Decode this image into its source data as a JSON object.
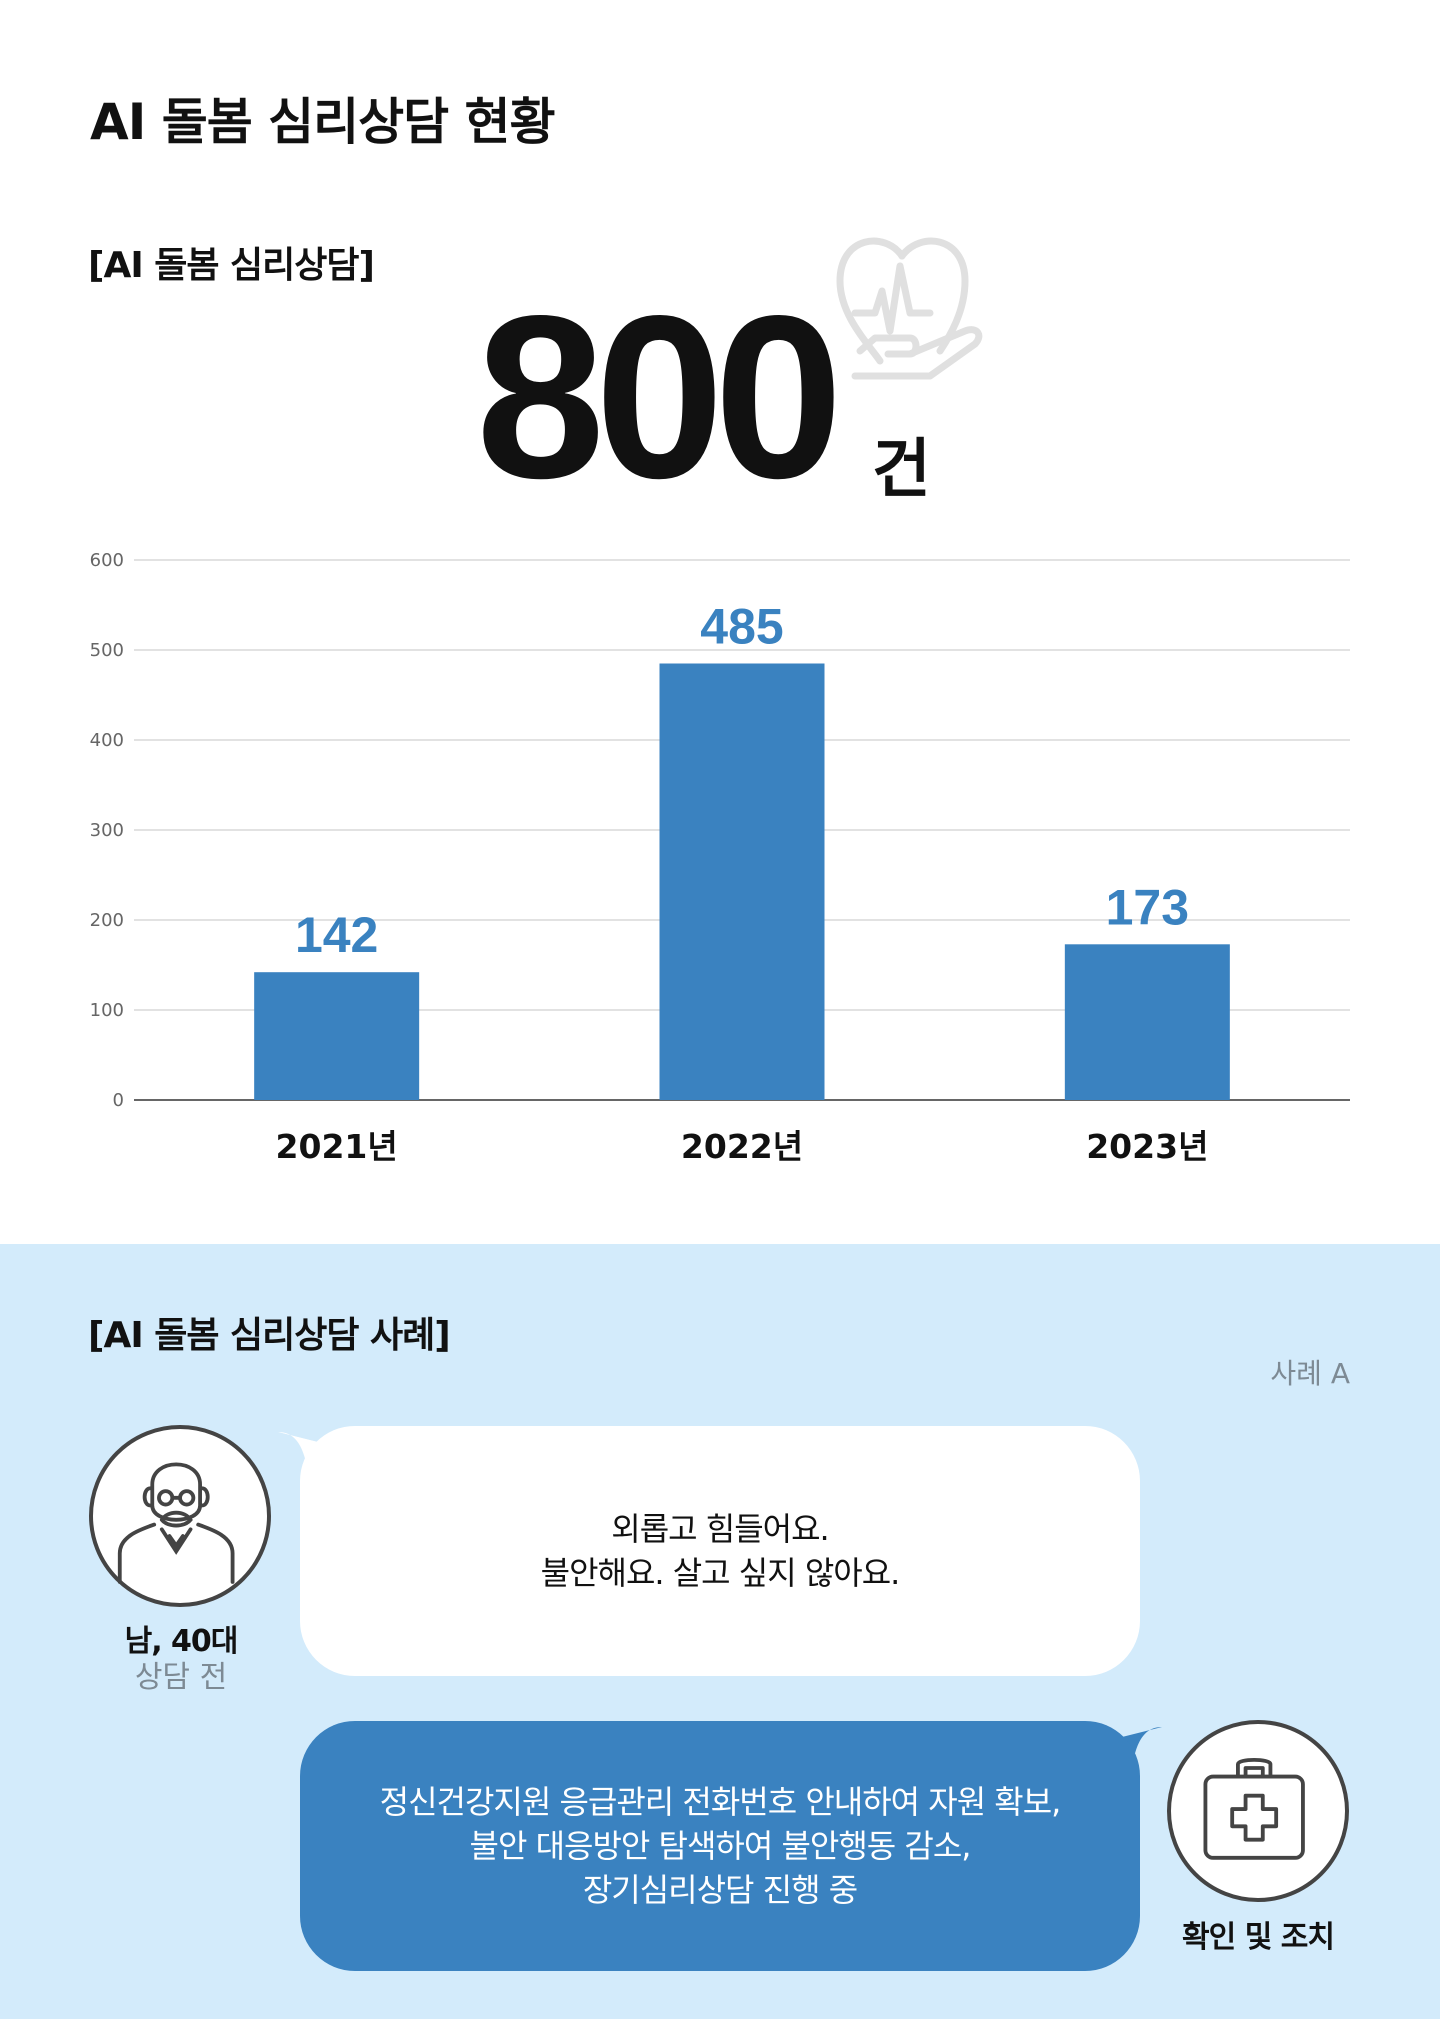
{
  "header": {
    "title": "AI 돌봄 심리상담 현황"
  },
  "summary": {
    "label": "[AI 돌봄 심리상담]",
    "total": "800",
    "unit": "건",
    "icon": "heart-hand-icon"
  },
  "chart_data": {
    "type": "bar",
    "categories": [
      "2021년",
      "2022년",
      "2023년"
    ],
    "values": [
      142,
      485,
      173
    ],
    "data_labels": [
      "142",
      "485",
      "173"
    ],
    "ylim": [
      0,
      600
    ],
    "yticks": [
      "0",
      "100",
      "200",
      "300",
      "400",
      "500",
      "600"
    ],
    "grid": true,
    "bar_color": "#3a82c0",
    "label_color": "#3a82c0"
  },
  "cases": {
    "title": "[AI 돌봄 심리상담 사례]",
    "case_label": "사례 A",
    "client": {
      "who": "남, 40대",
      "stage": "상담 전",
      "icon": "elderly-man-icon"
    },
    "before": {
      "lines": [
        "외롭고 힘들어요.",
        "불안해요. 살고 싶지 않아요."
      ]
    },
    "action": {
      "label": "확인 및 조치",
      "icon": "first-aid-kit-icon",
      "lines": [
        "정신건강지원 응급관리 전화번호 안내하여 자원 확보,",
        "불안  대응방안 탐색하여 불안행동 감소,",
        "장기심리상담 진행 중"
      ]
    },
    "colors": {
      "background": "#d3ebfb",
      "accent": "#3a82c0"
    }
  }
}
